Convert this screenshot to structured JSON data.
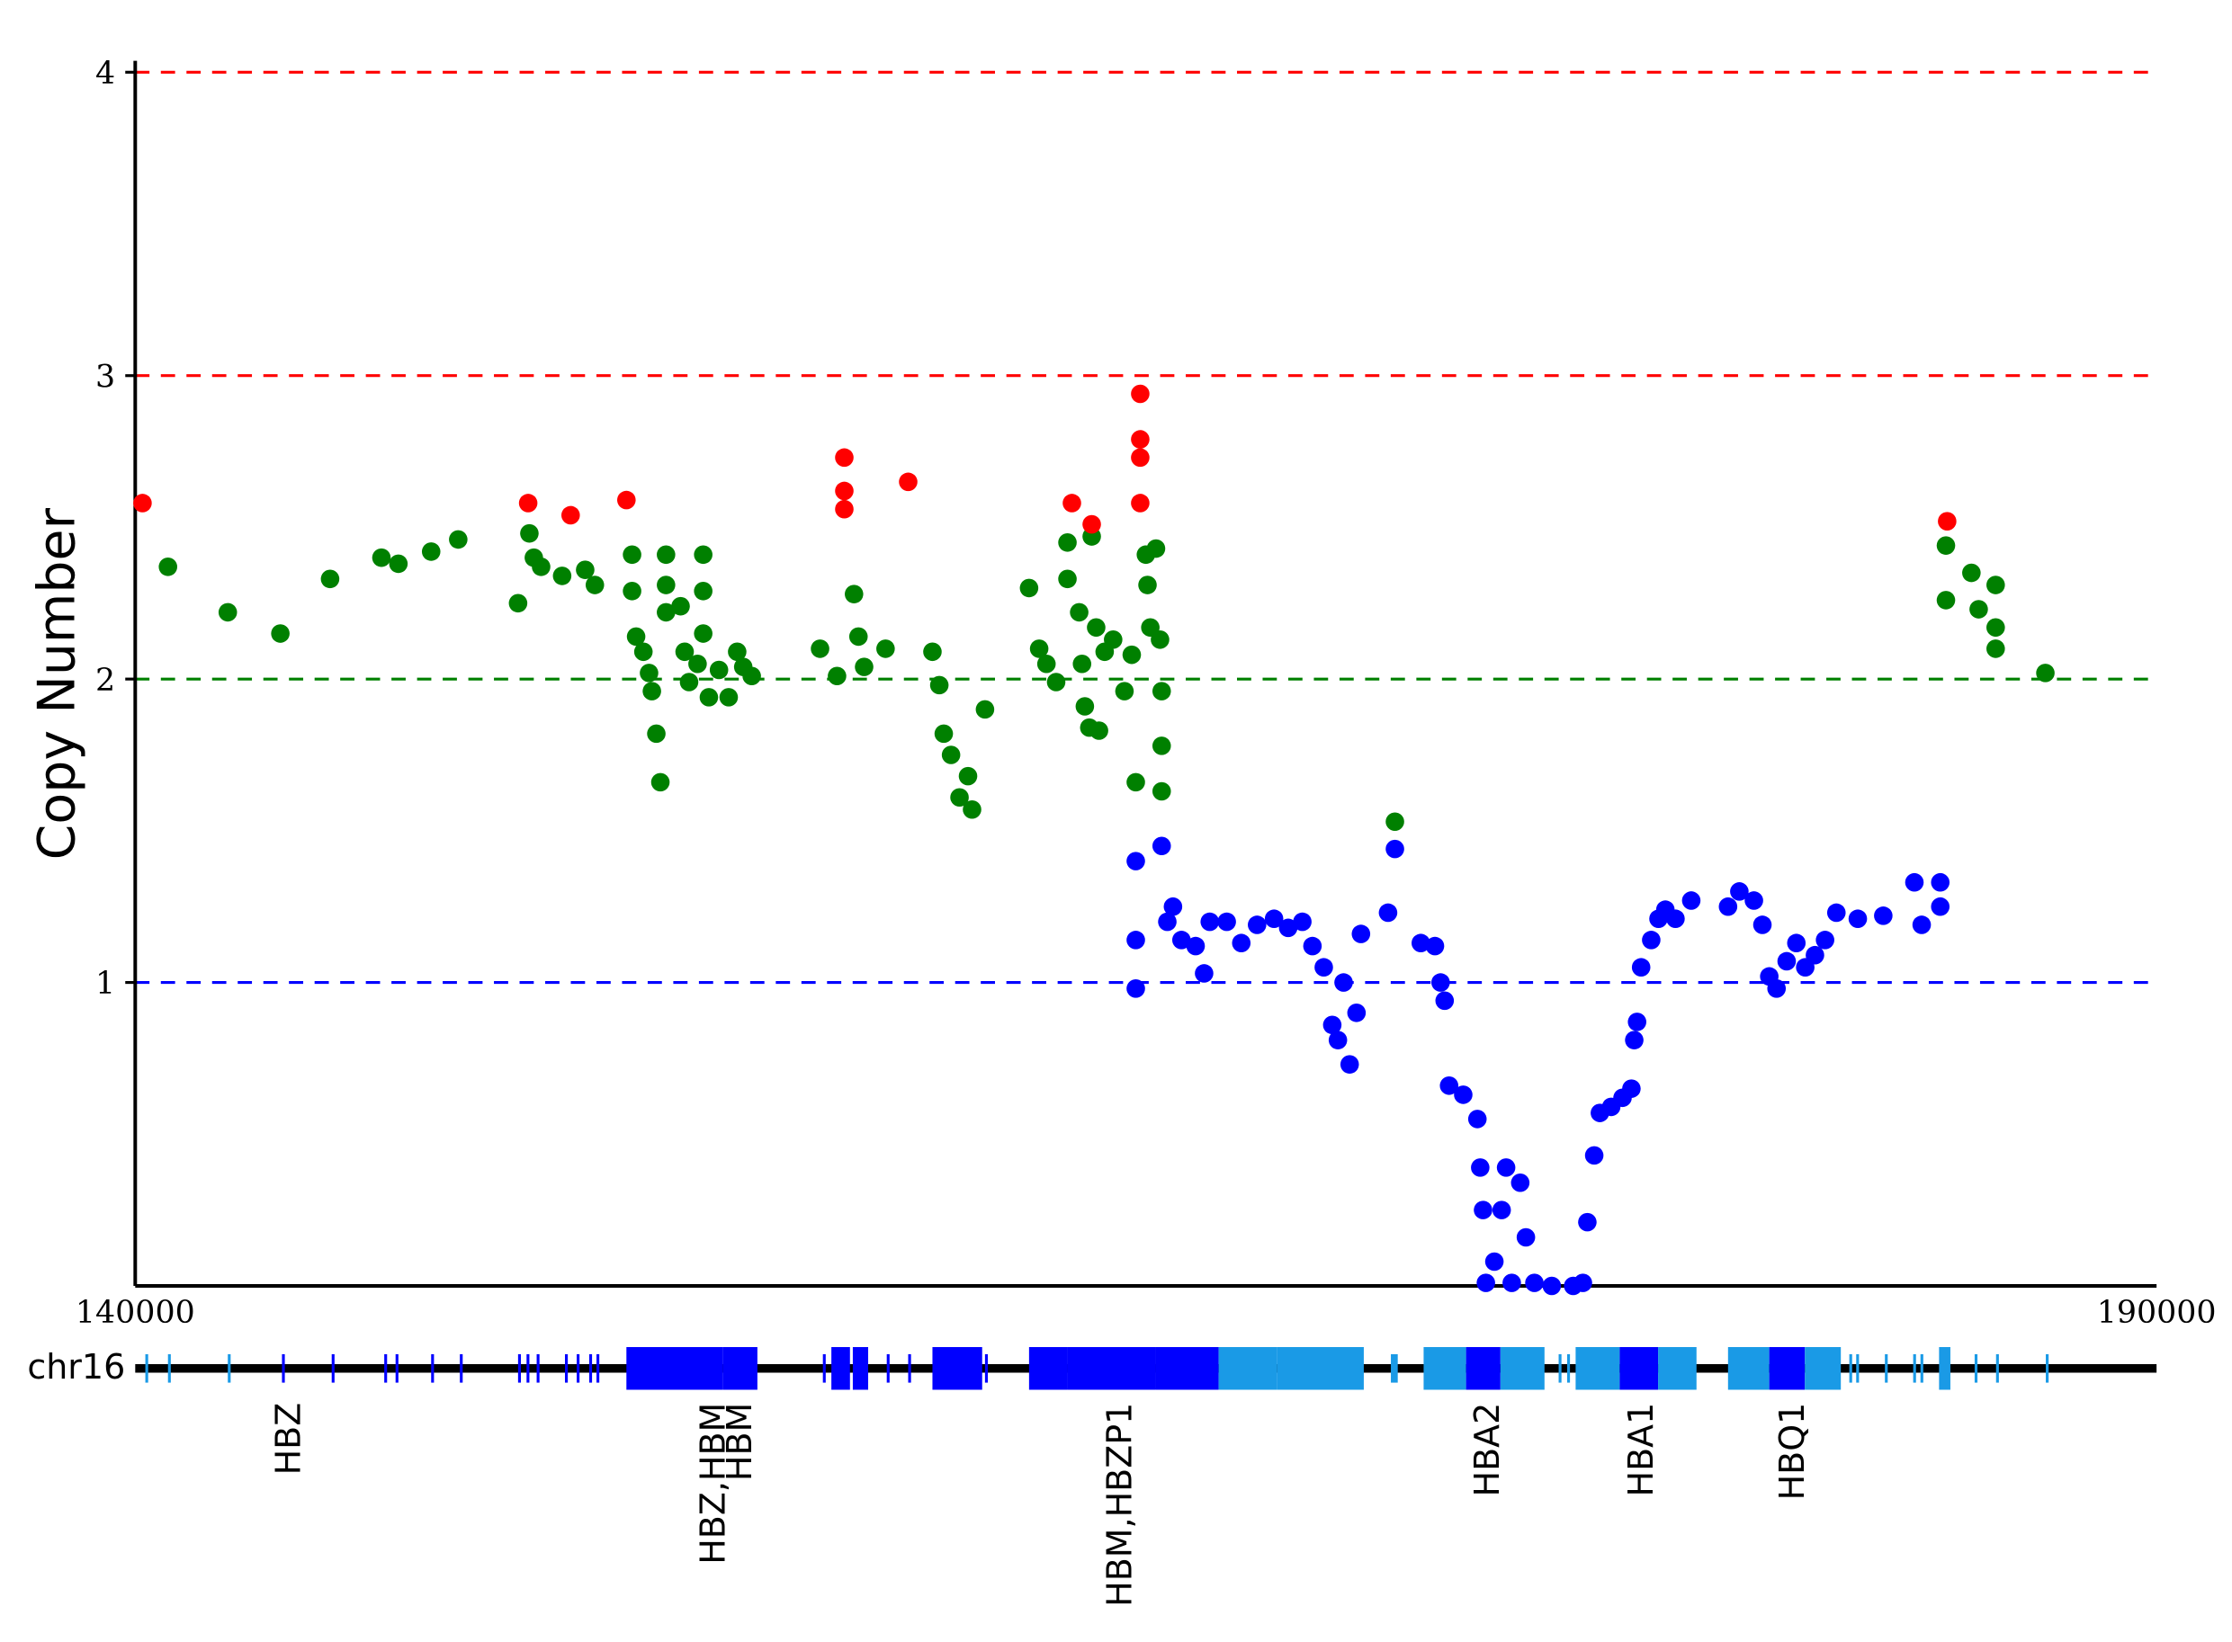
{
  "chart_data": {
    "type": "scatter",
    "ylabel": "Copy Number",
    "xlim": [
      140000,
      190000
    ],
    "xticks": [
      140000,
      190000
    ],
    "ylim": [
      0,
      4
    ],
    "yticks": [
      1,
      2,
      3,
      4
    ],
    "hlines": [
      {
        "value": 4,
        "color": "#ff0000"
      },
      {
        "value": 3,
        "color": "#ff0000"
      },
      {
        "value": 2,
        "color": "#008000"
      },
      {
        "value": 1,
        "color": "#0000ff"
      }
    ],
    "series": [
      {
        "color": "#008000",
        "x": [
          140810,
          142290,
          143590,
          144820,
          146090,
          146510,
          147320,
          147990,
          149470,
          149750,
          149860,
          150040,
          150560,
          151130,
          151370,
          152290,
          152290,
          152390,
          152570,
          152710,
          152780,
          152890,
          152990,
          153130,
          153130,
          153130,
          153490,
          153590,
          153700,
          153910,
          154050,
          154050,
          154050,
          154190,
          154440,
          154680,
          154890,
          155040,
          155250,
          156940,
          157360,
          157780,
          157890,
          158030,
          158560,
          159720,
          159890,
          160000,
          160180,
          160390,
          160600,
          160700,
          161020,
          162110,
          162360,
          162540,
          162780,
          163060,
          163060,
          163350,
          163420,
          163490,
          163600,
          163660,
          163770,
          163840,
          163980,
          164190,
          164470,
          164650,
          164750,
          165000,
          165040,
          165110,
          165250,
          165350,
          165390,
          165390,
          165390,
          171160,
          184790,
          184790,
          185420,
          185600,
          186020,
          186020,
          186020,
          187250
        ],
        "values": [
          2.37,
          2.22,
          2.15,
          2.33,
          2.4,
          2.38,
          2.42,
          2.46,
          2.25,
          2.48,
          2.4,
          2.37,
          2.34,
          2.36,
          2.31,
          2.41,
          2.29,
          2.14,
          2.09,
          2.02,
          1.96,
          1.82,
          1.66,
          2.41,
          2.31,
          2.22,
          2.24,
          2.09,
          1.99,
          2.05,
          2.41,
          2.29,
          2.15,
          1.94,
          2.03,
          1.94,
          2.09,
          2.04,
          2.01,
          2.1,
          2.01,
          2.28,
          2.14,
          2.04,
          2.1,
          2.09,
          1.98,
          1.82,
          1.75,
          1.61,
          1.68,
          1.57,
          1.9,
          2.3,
          2.1,
          2.05,
          1.99,
          2.45,
          2.33,
          2.22,
          2.05,
          1.91,
          1.84,
          2.47,
          2.17,
          1.83,
          2.09,
          2.13,
          1.96,
          2.08,
          1.66,
          2.41,
          2.31,
          2.17,
          2.43,
          2.13,
          1.96,
          1.78,
          1.63,
          1.53,
          2.44,
          2.26,
          2.35,
          2.23,
          2.31,
          2.17,
          2.1,
          2.02
        ]
      },
      {
        "color": "#ff0000",
        "x": [
          140180,
          149720,
          150770,
          152150,
          157540,
          157540,
          157540,
          159120,
          163170,
          163660,
          164860,
          164860,
          164860,
          164860,
          184820
        ],
        "values": [
          2.58,
          2.58,
          2.54,
          2.59,
          2.73,
          2.62,
          2.56,
          2.65,
          2.58,
          2.51,
          2.94,
          2.79,
          2.73,
          2.58,
          2.52
        ]
      },
      {
        "color": "#0000ff",
        "x": [
          164750,
          164750,
          164750,
          165390,
          165530,
          165670,
          165880,
          166230,
          166440,
          166580,
          167000,
          167360,
          167750,
          168170,
          168520,
          168870,
          169120,
          169400,
          169610,
          169750,
          169890,
          170040,
          170210,
          170320,
          170990,
          171160,
          171800,
          172150,
          172290,
          172390,
          172500,
          172850,
          173200,
          173270,
          173340,
          173410,
          173620,
          173800,
          173910,
          174050,
          174260,
          174400,
          174610,
          175040,
          175570,
          175810,
          175920,
          176090,
          176230,
          176510,
          176790,
          177010,
          177080,
          177150,
          177250,
          177500,
          177680,
          177850,
          178100,
          178490,
          179400,
          179680,
          180040,
          180250,
          180420,
          180600,
          180850,
          181090,
          181310,
          181550,
          181800,
          182080,
          182610,
          183240,
          184010,
          184190,
          184650,
          184650
        ],
        "values": [
          1.4,
          1.14,
          0.98,
          1.45,
          1.2,
          1.25,
          1.14,
          1.12,
          1.03,
          1.2,
          1.2,
          1.13,
          1.19,
          1.21,
          1.18,
          1.2,
          1.12,
          1.05,
          0.86,
          0.81,
          1.0,
          0.73,
          0.9,
          1.16,
          1.23,
          1.44,
          1.13,
          1.12,
          1.0,
          0.94,
          0.66,
          0.63,
          0.55,
          0.39,
          0.25,
          0.01,
          0.08,
          0.25,
          0.39,
          0.01,
          0.34,
          0.16,
          0.01,
          0.0,
          0.0,
          0.01,
          0.21,
          0.43,
          0.57,
          0.59,
          0.62,
          0.65,
          0.81,
          0.87,
          1.05,
          1.14,
          1.21,
          1.24,
          1.21,
          1.27,
          1.25,
          1.3,
          1.27,
          1.19,
          1.02,
          0.98,
          1.07,
          1.13,
          1.05,
          1.09,
          1.14,
          1.23,
          1.21,
          1.22,
          1.33,
          1.19,
          1.33,
          1.25
        ]
      }
    ],
    "track": {
      "chromosome": "chr16",
      "features": [
        {
          "start": 140250,
          "end": 140320,
          "color": "#1a9ae6"
        },
        {
          "start": 140810,
          "end": 140880,
          "color": "#1a9ae6"
        },
        {
          "start": 142290,
          "end": 142360,
          "color": "#1a9ae6"
        },
        {
          "start": 143630,
          "end": 143700,
          "color": "#0000ff"
        },
        {
          "start": 144860,
          "end": 144930,
          "color": "#0000ff"
        },
        {
          "start": 146160,
          "end": 146230,
          "color": "#0000ff"
        },
        {
          "start": 146440,
          "end": 146510,
          "color": "#0000ff"
        },
        {
          "start": 147320,
          "end": 147390,
          "color": "#0000ff"
        },
        {
          "start": 148030,
          "end": 148100,
          "color": "#0000ff"
        },
        {
          "start": 149470,
          "end": 149540,
          "color": "#0000ff"
        },
        {
          "start": 149680,
          "end": 149750,
          "color": "#0000ff"
        },
        {
          "start": 149930,
          "end": 150000,
          "color": "#0000ff"
        },
        {
          "start": 150630,
          "end": 150700,
          "color": "#0000ff"
        },
        {
          "start": 150920,
          "end": 150990,
          "color": "#0000ff"
        },
        {
          "start": 151230,
          "end": 151300,
          "color": "#0000ff"
        },
        {
          "start": 151410,
          "end": 151480,
          "color": "#0000ff"
        },
        {
          "start": 152150,
          "end": 154540,
          "color": "#0000ff"
        },
        {
          "start": 154540,
          "end": 155390,
          "color": "#0000ff"
        },
        {
          "start": 157010,
          "end": 157080,
          "color": "#0000ff"
        },
        {
          "start": 157220,
          "end": 157680,
          "color": "#0000ff"
        },
        {
          "start": 157750,
          "end": 158130,
          "color": "#0000ff"
        },
        {
          "start": 158590,
          "end": 158660,
          "color": "#0000ff"
        },
        {
          "start": 159120,
          "end": 159190,
          "color": "#0000ff"
        },
        {
          "start": 159720,
          "end": 160950,
          "color": "#0000ff"
        },
        {
          "start": 161020,
          "end": 161090,
          "color": "#0000ff"
        },
        {
          "start": 162110,
          "end": 163060,
          "color": "#0000ff"
        },
        {
          "start": 163060,
          "end": 165250,
          "color": "#0000ff"
        },
        {
          "start": 165250,
          "end": 166800,
          "color": "#0000ff"
        },
        {
          "start": 166800,
          "end": 168240,
          "color": "#1a9ae6"
        },
        {
          "start": 168240,
          "end": 170390,
          "color": "#1a9ae6"
        },
        {
          "start": 171060,
          "end": 171230,
          "color": "#1a9ae6"
        },
        {
          "start": 171870,
          "end": 172920,
          "color": "#1a9ae6"
        },
        {
          "start": 172920,
          "end": 173770,
          "color": "#0000ff"
        },
        {
          "start": 173770,
          "end": 174860,
          "color": "#1a9ae6"
        },
        {
          "start": 175210,
          "end": 175280,
          "color": "#1a9ae6"
        },
        {
          "start": 175420,
          "end": 175490,
          "color": "#1a9ae6"
        },
        {
          "start": 175630,
          "end": 176720,
          "color": "#1a9ae6"
        },
        {
          "start": 176720,
          "end": 177670,
          "color": "#0000ff"
        },
        {
          "start": 177670,
          "end": 178620,
          "color": "#1a9ae6"
        },
        {
          "start": 179400,
          "end": 180420,
          "color": "#1a9ae6"
        },
        {
          "start": 180420,
          "end": 181300,
          "color": "#0000ff"
        },
        {
          "start": 181300,
          "end": 182190,
          "color": "#1a9ae6"
        },
        {
          "start": 182400,
          "end": 182470,
          "color": "#1a9ae6"
        },
        {
          "start": 182570,
          "end": 182640,
          "color": "#1a9ae6"
        },
        {
          "start": 183280,
          "end": 183350,
          "color": "#1a9ae6"
        },
        {
          "start": 183980,
          "end": 184050,
          "color": "#1a9ae6"
        },
        {
          "start": 184160,
          "end": 184230,
          "color": "#1a9ae6"
        },
        {
          "start": 184620,
          "end": 184900,
          "color": "#1a9ae6"
        },
        {
          "start": 185500,
          "end": 185570,
          "color": "#1a9ae6"
        },
        {
          "start": 186030,
          "end": 186100,
          "color": "#1a9ae6"
        },
        {
          "start": 187260,
          "end": 187330,
          "color": "#1a9ae6"
        }
      ],
      "labels": [
        {
          "x": 143800,
          "text": "HBZ"
        },
        {
          "x": 154300,
          "text": "HBZ,HBM"
        },
        {
          "x": 154950,
          "text": "HBM"
        },
        {
          "x": 164360,
          "text": "HBM,HBZP1"
        },
        {
          "x": 173450,
          "text": "HBA2"
        },
        {
          "x": 177250,
          "text": "HBA1"
        },
        {
          "x": 180990,
          "text": "HBQ1"
        }
      ]
    }
  }
}
